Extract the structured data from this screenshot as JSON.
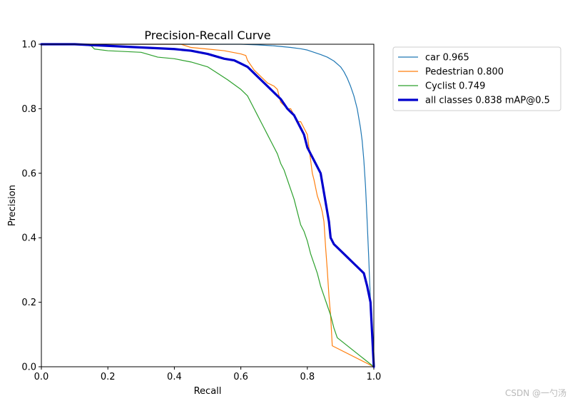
{
  "chart_data": {
    "type": "line",
    "title": "Precision-Recall Curve",
    "xlabel": "Recall",
    "ylabel": "Precision",
    "xlim": [
      0,
      1
    ],
    "ylim": [
      0,
      1
    ],
    "xticks": [
      "0.0",
      "0.2",
      "0.4",
      "0.6",
      "0.8",
      "1.0"
    ],
    "yticks": [
      "0.0",
      "0.2",
      "0.4",
      "0.6",
      "0.8",
      "1.0"
    ],
    "grid": false,
    "legend_position": "outside-top-right",
    "series": [
      {
        "name": "car 0.965",
        "color": "#1f77b4",
        "line_width": "thin",
        "x": [
          0,
          0.05,
          0.1,
          0.2,
          0.3,
          0.4,
          0.5,
          0.55,
          0.6,
          0.65,
          0.7,
          0.75,
          0.78,
          0.8,
          0.82,
          0.84,
          0.86,
          0.88,
          0.9,
          0.91,
          0.92,
          0.93,
          0.94,
          0.95,
          0.96,
          0.965,
          0.97,
          0.975,
          0.98,
          0.985,
          0.99,
          0.995,
          1.0
        ],
        "y": [
          1.0,
          1.0,
          1.0,
          1.0,
          1.0,
          1.0,
          1.0,
          1.0,
          1.0,
          0.998,
          0.995,
          0.99,
          0.986,
          0.982,
          0.975,
          0.968,
          0.96,
          0.948,
          0.93,
          0.915,
          0.895,
          0.87,
          0.84,
          0.8,
          0.74,
          0.7,
          0.64,
          0.56,
          0.45,
          0.33,
          0.2,
          0.09,
          0.0
        ]
      },
      {
        "name": "Pedestrian 0.800",
        "color": "#ff7f0e",
        "line_width": "thin",
        "x": [
          0,
          0.05,
          0.1,
          0.2,
          0.3,
          0.42,
          0.45,
          0.5,
          0.55,
          0.6,
          0.615,
          0.62,
          0.64,
          0.66,
          0.68,
          0.7,
          0.71,
          0.715,
          0.72,
          0.73,
          0.74,
          0.75,
          0.76,
          0.77,
          0.78,
          0.79,
          0.8,
          0.81,
          0.815,
          0.82,
          0.83,
          0.84,
          0.845,
          0.85,
          0.855,
          0.86,
          0.865,
          0.87,
          0.875,
          1.0
        ],
        "y": [
          1.0,
          1.0,
          1.0,
          1.0,
          1.0,
          1.0,
          0.99,
          0.985,
          0.98,
          0.97,
          0.965,
          0.95,
          0.92,
          0.9,
          0.88,
          0.87,
          0.86,
          0.84,
          0.82,
          0.81,
          0.8,
          0.8,
          0.78,
          0.76,
          0.76,
          0.74,
          0.72,
          0.64,
          0.6,
          0.58,
          0.53,
          0.5,
          0.48,
          0.45,
          0.37,
          0.3,
          0.22,
          0.16,
          0.065,
          0.0
        ]
      },
      {
        "name": "Cyclist 0.749",
        "color": "#2ca02c",
        "line_width": "thin",
        "x": [
          0,
          0.1,
          0.15,
          0.16,
          0.2,
          0.3,
          0.35,
          0.4,
          0.45,
          0.5,
          0.53,
          0.56,
          0.58,
          0.6,
          0.62,
          0.63,
          0.64,
          0.65,
          0.66,
          0.67,
          0.68,
          0.69,
          0.7,
          0.71,
          0.72,
          0.73,
          0.74,
          0.75,
          0.76,
          0.77,
          0.78,
          0.79,
          0.8,
          0.81,
          0.82,
          0.83,
          0.84,
          0.85,
          0.86,
          0.87,
          0.88,
          0.89,
          1.0
        ],
        "y": [
          1.0,
          1.0,
          0.995,
          0.985,
          0.98,
          0.975,
          0.96,
          0.955,
          0.945,
          0.93,
          0.91,
          0.89,
          0.875,
          0.86,
          0.84,
          0.82,
          0.8,
          0.78,
          0.76,
          0.74,
          0.72,
          0.7,
          0.68,
          0.66,
          0.63,
          0.61,
          0.58,
          0.55,
          0.52,
          0.48,
          0.44,
          0.42,
          0.39,
          0.35,
          0.32,
          0.29,
          0.25,
          0.22,
          0.19,
          0.16,
          0.12,
          0.09,
          0.0
        ]
      },
      {
        "name": "all classes 0.838 mAP@0.5",
        "color": "#0000cd",
        "line_width": "thick",
        "x": [
          0,
          0.1,
          0.2,
          0.3,
          0.4,
          0.45,
          0.5,
          0.55,
          0.58,
          0.6,
          0.62,
          0.64,
          0.66,
          0.68,
          0.7,
          0.72,
          0.74,
          0.75,
          0.76,
          0.77,
          0.78,
          0.79,
          0.8,
          0.81,
          0.82,
          0.83,
          0.84,
          0.85,
          0.86,
          0.865,
          0.87,
          0.88,
          0.9,
          0.92,
          0.94,
          0.96,
          0.97,
          0.98,
          0.99,
          1.0
        ],
        "y": [
          1.0,
          1.0,
          0.995,
          0.99,
          0.985,
          0.98,
          0.97,
          0.955,
          0.95,
          0.94,
          0.93,
          0.91,
          0.89,
          0.87,
          0.85,
          0.83,
          0.8,
          0.79,
          0.78,
          0.76,
          0.74,
          0.72,
          0.68,
          0.66,
          0.64,
          0.62,
          0.6,
          0.54,
          0.48,
          0.45,
          0.4,
          0.38,
          0.36,
          0.34,
          0.32,
          0.3,
          0.29,
          0.25,
          0.2,
          0.0
        ]
      }
    ]
  },
  "watermark": "CSDN @一勺汤"
}
